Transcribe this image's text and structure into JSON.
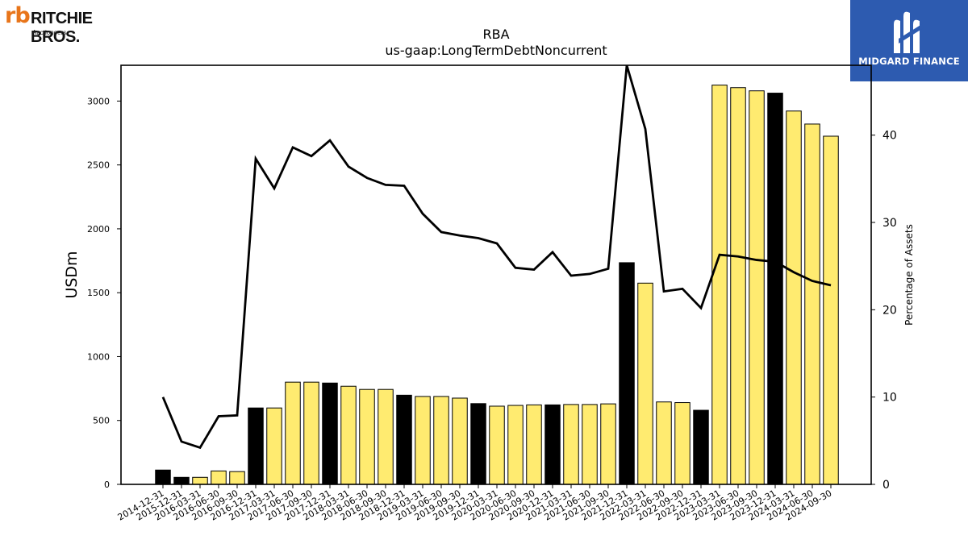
{
  "branding": {
    "left_logo_mark": "rb",
    "left_logo_name": "RITCHIE BROS.",
    "left_logo_sub": "Auctioneers",
    "right_logo_name": "MIDGARD FINANCE"
  },
  "colors": {
    "bar_highlight": "#ffeb70",
    "bar_year_end": "#000000",
    "line": "#000000",
    "brand_orange": "#e8751a",
    "brand_blue": "#2d5bb0"
  },
  "chart_data": {
    "type": "bar",
    "title": "RBA",
    "subtitle": "us-gaap:LongTermDebtNoncurrent",
    "ylabel": "USDm",
    "y2label": "Percentage of Assets",
    "ylim": [
      0,
      3280
    ],
    "y2lim": [
      0,
      48
    ],
    "yticks": [
      0,
      500,
      1000,
      1500,
      2000,
      2500,
      3000
    ],
    "y2ticks": [
      0,
      10,
      20,
      30,
      40
    ],
    "grid": false,
    "categories": [
      "2014-12-31",
      "2015-12-31",
      "2016-03-31",
      "2016-06-30",
      "2016-09-30",
      "2016-12-31",
      "2017-03-31",
      "2017-06-30",
      "2017-09-30",
      "2017-12-31",
      "2018-03-31",
      "2018-06-30",
      "2018-09-30",
      "2018-12-31",
      "2019-03-31",
      "2019-06-30",
      "2019-09-30",
      "2019-12-31",
      "2020-03-31",
      "2020-06-30",
      "2020-09-30",
      "2020-12-31",
      "2021-03-31",
      "2021-06-30",
      "2021-09-30",
      "2021-12-31",
      "2022-03-31",
      "2022-06-30",
      "2022-09-30",
      "2022-12-31",
      "2023-03-31",
      "2023-06-30",
      "2023-09-30",
      "2023-12-31",
      "2024-03-31",
      "2024-06-30",
      "2024-09-30"
    ],
    "series": [
      {
        "type": "bar",
        "axis": "left",
        "values": [
          112,
          55,
          55,
          105,
          100,
          598,
          598,
          800,
          800,
          793,
          768,
          743,
          743,
          698,
          688,
          688,
          675,
          632,
          612,
          618,
          622,
          622,
          625,
          625,
          630,
          1735,
          1575,
          645,
          640,
          580,
          3125,
          3105,
          3080,
          3062,
          2922,
          2820,
          2725
        ]
      },
      {
        "type": "line",
        "axis": "right",
        "values": [
          10.0,
          4.9,
          4.2,
          7.8,
          7.9,
          37.3,
          33.9,
          38.6,
          37.6,
          39.4,
          36.4,
          35.1,
          34.3,
          34.2,
          31.0,
          28.9,
          28.5,
          28.2,
          27.6,
          24.8,
          24.6,
          26.6,
          23.9,
          24.1,
          24.7,
          48.0,
          40.7,
          22.1,
          22.4,
          20.2,
          26.3,
          26.1,
          25.7,
          25.5,
          24.3,
          23.3,
          22.8
        ]
      }
    ],
    "year_end_categories": [
      "2014-12-31",
      "2015-12-31",
      "2016-12-31",
      "2017-12-31",
      "2018-12-31",
      "2019-12-31",
      "2020-12-31",
      "2021-12-31",
      "2022-12-31",
      "2023-12-31"
    ]
  }
}
